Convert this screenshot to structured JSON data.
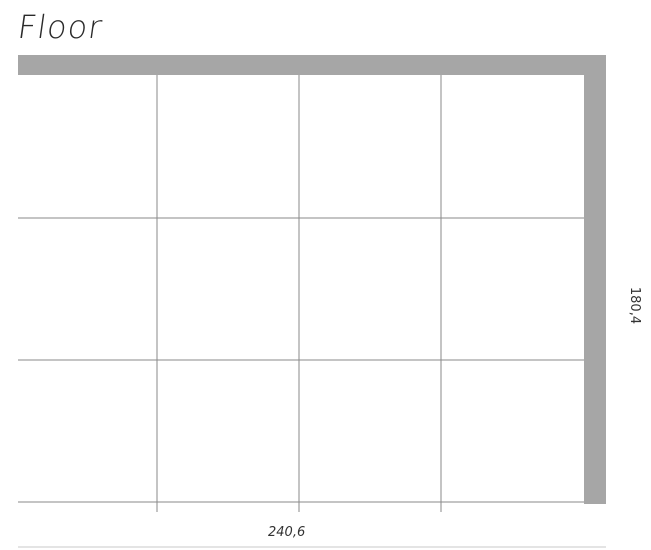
{
  "title": "Floor",
  "tiles": {
    "columns": 4,
    "rows": 3
  },
  "dimensions": {
    "width": "240,6",
    "height": "180,4"
  },
  "colors": {
    "wall": "#a6a6a6",
    "grid_line": "#8a8a8a",
    "tile_fill": "#ffffff",
    "text": "#2a2a2a"
  }
}
